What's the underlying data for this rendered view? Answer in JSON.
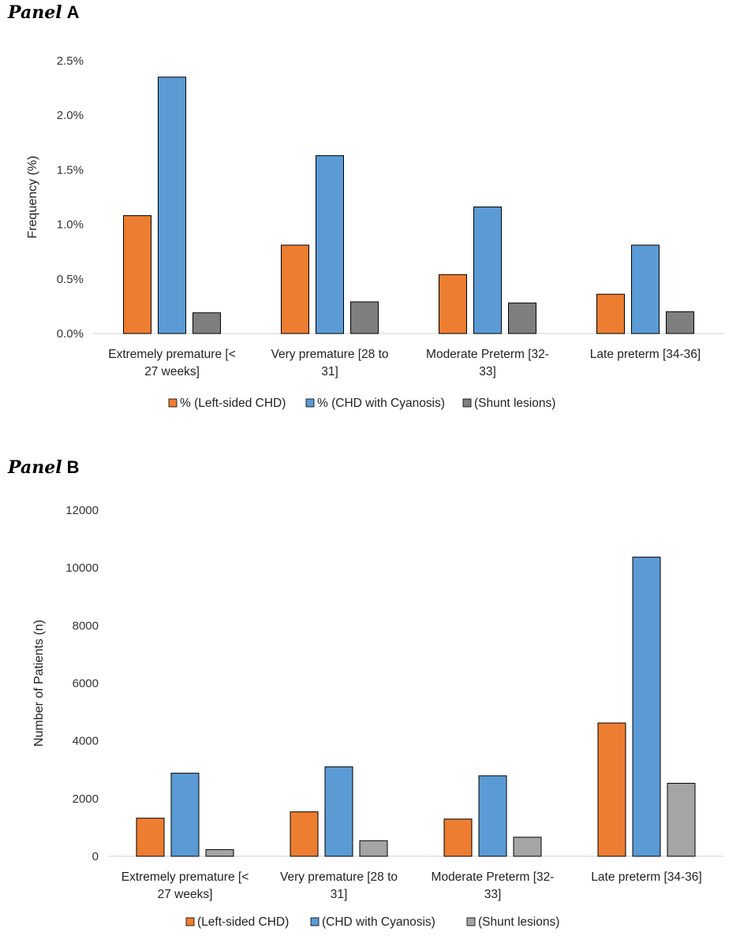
{
  "chart_data": [
    {
      "type": "bar",
      "panel_word": "Panel",
      "panel_letter": "A",
      "categories": [
        [
          "Extremely premature [<",
          "27 weeks]"
        ],
        [
          "Very premature [28 to",
          "31]"
        ],
        [
          "Moderate Preterm [32-",
          "33]"
        ],
        [
          "Late preterm [34-36]"
        ]
      ],
      "ylabel": "Frequency (%)",
      "ylim": [
        0,
        2.5
      ],
      "yticks": [
        "0.0%",
        "0.5%",
        "1.0%",
        "1.5%",
        "2.0%",
        "2.5%"
      ],
      "ytick_values": [
        0,
        0.5,
        1.0,
        1.5,
        2.0,
        2.5
      ],
      "series": [
        {
          "name": "% (Left-sided CHD)",
          "color": "#ED7D31",
          "values": [
            1.08,
            0.81,
            0.54,
            0.36
          ]
        },
        {
          "name": "% (CHD with Cyanosis)",
          "color": "#5B9BD5",
          "values": [
            2.35,
            1.63,
            1.16,
            0.81
          ]
        },
        {
          "name": "(Shunt lesions)",
          "color": "#7F7F7F",
          "values": [
            0.19,
            0.29,
            0.28,
            0.2
          ]
        }
      ],
      "legend_position": "bottom"
    },
    {
      "type": "bar",
      "panel_word": "Panel",
      "panel_letter": "B",
      "categories": [
        [
          "Extremely premature [<",
          "27 weeks]"
        ],
        [
          "Very premature [28 to",
          "31]"
        ],
        [
          "Moderate Preterm [32-",
          "33]"
        ],
        [
          "Late preterm [34-36]"
        ]
      ],
      "ylabel": "Number of Patients (n)",
      "ylim": [
        0,
        12000
      ],
      "yticks": [
        "0",
        "2000",
        "4000",
        "6000",
        "8000",
        "10000",
        "12000"
      ],
      "ytick_values": [
        0,
        2000,
        4000,
        6000,
        8000,
        10000,
        12000
      ],
      "series": [
        {
          "name": "(Left-sided CHD)",
          "color": "#ED7D31",
          "values": [
            1320,
            1540,
            1290,
            4620
          ]
        },
        {
          "name": "(CHD with Cyanosis)",
          "color": "#5B9BD5",
          "values": [
            2880,
            3100,
            2790,
            10370
          ]
        },
        {
          "name": "(Shunt lesions)",
          "color": "#A5A5A5",
          "values": [
            230,
            540,
            660,
            2530
          ]
        }
      ],
      "legend_position": "bottom"
    }
  ]
}
